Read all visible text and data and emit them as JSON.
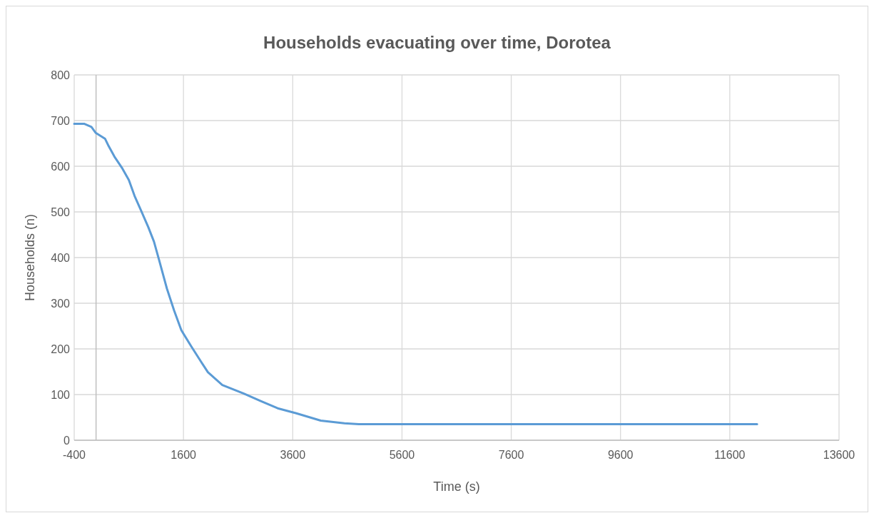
{
  "chart_data": {
    "type": "line",
    "title": "Households evacuating over time, Dorotea",
    "xlabel": "Time (s)",
    "ylabel": "Households (n)",
    "xlim": [
      -400,
      13600
    ],
    "xticks": [
      -400,
      1600,
      3600,
      5600,
      7600,
      9600,
      11600,
      13600
    ],
    "ylim": [
      0,
      800
    ],
    "yticks": [
      0,
      100,
      200,
      300,
      400,
      500,
      600,
      700,
      800
    ],
    "grid": true,
    "marker": "none",
    "line_style": "solid",
    "series": [
      {
        "color": "#5b9bd5",
        "x": [
          -400,
          -220,
          -85,
          -5,
          166,
          231,
          337,
          482,
          600,
          705,
          824,
          955,
          1060,
          1153,
          1297,
          1429,
          1561,
          1745,
          1916,
          2047,
          2311,
          2705,
          3008,
          3324,
          3666,
          4113,
          4547,
          4810,
          12100
        ],
        "values": [
          693,
          693,
          686,
          673,
          660,
          644,
          621,
          595,
          570,
          535,
          503,
          467,
          435,
          395,
          332,
          284,
          241,
          205,
          173,
          149,
          121,
          102,
          86,
          70,
          59,
          43,
          37,
          35,
          35
        ]
      }
    ]
  }
}
